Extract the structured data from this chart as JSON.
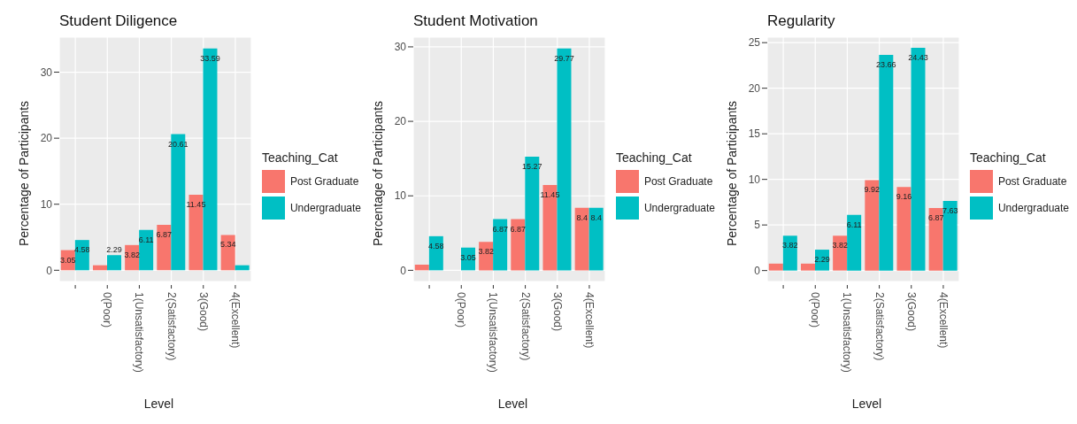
{
  "chart_data": [
    {
      "type": "bar",
      "title": "Student Diligence",
      "xlabel": "Level",
      "ylabel": "Percentage of Participants",
      "legend_title": "Teaching_Cat",
      "legend": "right",
      "grid": true,
      "categories": [
        null,
        "0(Poor)",
        "1(Unsatisfactory)",
        "2(Satisfactory)",
        "3(Good)",
        "4(Excellent)"
      ],
      "ylim": [
        -1.7,
        35.3
      ],
      "yticks": [
        0,
        10,
        20,
        30
      ],
      "series": [
        {
          "name": "Post Graduate",
          "color": "#f8766d",
          "values": [
            3.05,
            0.76,
            3.82,
            6.87,
            11.45,
            5.34
          ],
          "value_labels": [
            "3.05",
            null,
            "3.82",
            "6.87",
            "11.45",
            "5.34"
          ]
        },
        {
          "name": "Undergraduate",
          "color": "#00bfc4",
          "values": [
            4.58,
            2.29,
            6.11,
            20.61,
            33.59,
            0.76
          ],
          "value_labels": [
            "4.58",
            "2.29",
            "6.11",
            "20.61",
            "33.59",
            null
          ]
        }
      ]
    },
    {
      "type": "bar",
      "title": "Student Motivation",
      "xlabel": "Level",
      "ylabel": "Percentage of Participants",
      "legend_title": "Teaching_Cat",
      "legend": "right",
      "grid": true,
      "categories": [
        null,
        "0(Poor)",
        "1(Unsatisfactory)",
        "2(Satisfactory)",
        "3(Good)",
        "4(Excellent)"
      ],
      "ylim": [
        -1.5,
        31.3
      ],
      "yticks": [
        0,
        10,
        20,
        30
      ],
      "series": [
        {
          "name": "Post Graduate",
          "color": "#f8766d",
          "values": [
            0.76,
            null,
            3.82,
            6.87,
            11.45,
            8.4
          ],
          "value_labels": [
            null,
            null,
            "3.82",
            "6.87",
            "11.45",
            "8.4"
          ]
        },
        {
          "name": "Undergraduate",
          "color": "#00bfc4",
          "values": [
            4.58,
            3.05,
            6.87,
            15.27,
            29.77,
            8.4
          ],
          "value_labels": [
            "4.58",
            "3.05",
            "6.87",
            "15.27",
            "29.77",
            "8.4"
          ]
        }
      ]
    },
    {
      "type": "bar",
      "title": "Regularity",
      "xlabel": "Level",
      "ylabel": "Percentage of Participants",
      "legend_title": "Teaching_Cat",
      "legend": "right",
      "grid": true,
      "categories": [
        null,
        "0(Poor)",
        "1(Unsatisfactory)",
        "2(Satisfactory)",
        "3(Good)",
        "4(Excellent)"
      ],
      "ylim": [
        -1.2,
        25.6
      ],
      "yticks": [
        0,
        5,
        10,
        15,
        20,
        25
      ],
      "series": [
        {
          "name": "Post Graduate",
          "color": "#f8766d",
          "values": [
            0.76,
            0.76,
            3.82,
            9.92,
            9.16,
            6.87
          ],
          "value_labels": [
            null,
            null,
            "3.82",
            "9.92",
            "9.16",
            "6.87"
          ]
        },
        {
          "name": "Undergraduate",
          "color": "#00bfc4",
          "values": [
            3.82,
            2.29,
            6.11,
            23.66,
            24.43,
            7.63
          ],
          "value_labels": [
            "3.82",
            "2.29",
            "6.11",
            "23.66",
            "24.43",
            "7.63"
          ]
        }
      ]
    }
  ]
}
